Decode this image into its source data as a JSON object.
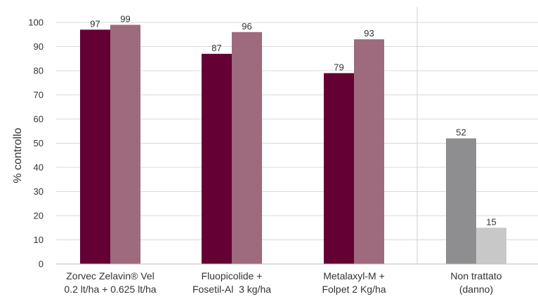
{
  "chart_data": {
    "type": "bar",
    "title": "",
    "ylabel": "% controllo",
    "xlabel": "",
    "ylim": [
      0,
      100
    ],
    "yticks": [
      "0",
      "10",
      "20",
      "30",
      "40",
      "50",
      "60",
      "70",
      "80",
      "90",
      "100"
    ],
    "grid": true,
    "legend": "none",
    "groups": [
      {
        "label_lines": [
          "Zorvec Zelavin® Vel",
          "0.2 lt/ha + 0.625 lt/ha"
        ],
        "values": [
          97,
          99
        ],
        "colors": [
          "#640033",
          "#9e6a7e"
        ]
      },
      {
        "label_lines": [
          "Fluopicolide +",
          "Fosetil-Al  3 kg/ha"
        ],
        "values": [
          87,
          96
        ],
        "colors": [
          "#640033",
          "#9e6a7e"
        ]
      },
      {
        "label_lines": [
          "Metalaxyl-M +",
          "Folpet 2 Kg/ha"
        ],
        "values": [
          79,
          93
        ],
        "colors": [
          "#640033",
          "#9e6a7e"
        ]
      },
      {
        "label_lines": [
          "Non trattato",
          "(danno)"
        ],
        "values": [
          52,
          15
        ],
        "colors": [
          "#8e8e91",
          "#c8c8c9"
        ]
      }
    ],
    "separator_before_group": 3
  }
}
